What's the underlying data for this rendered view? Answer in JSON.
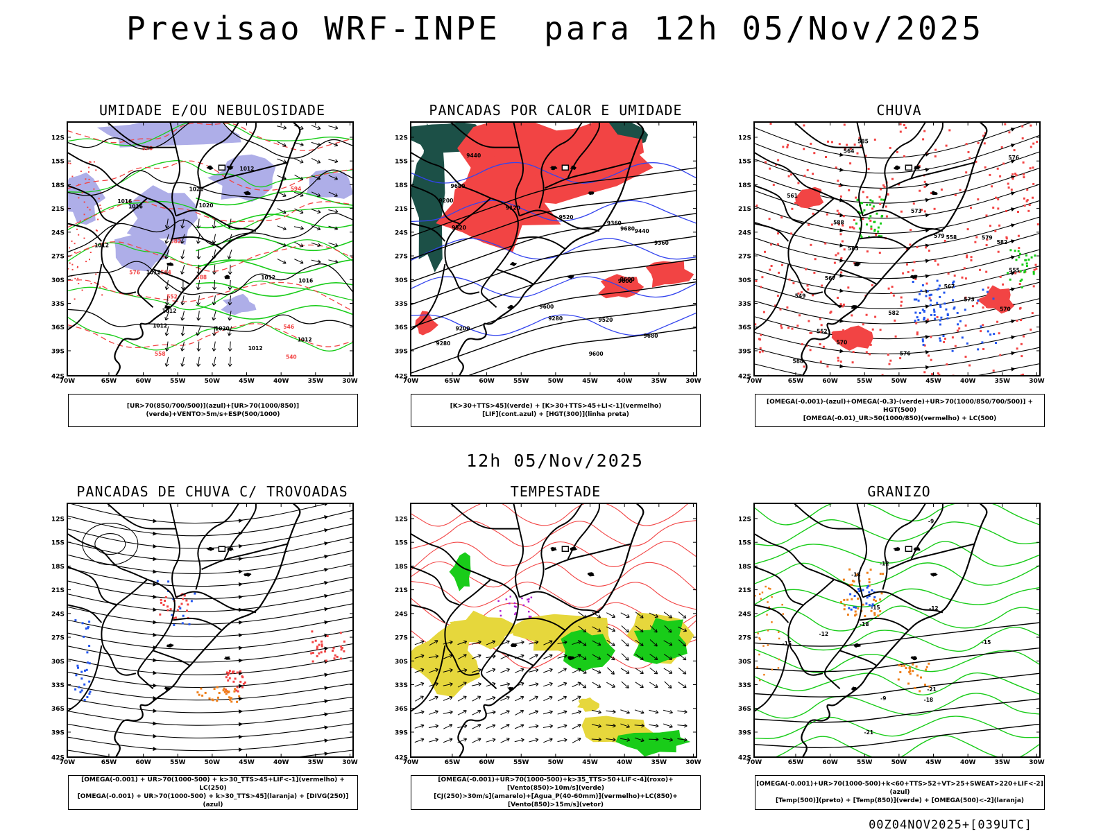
{
  "header": {
    "title": "Previsao WRF-INPE  para 12h 05/Nov/2025"
  },
  "middle_title": "12h 05/Nov/2025",
  "footer": "00Z04NOV2025+[039UTC]",
  "axes": {
    "lat_labels": [
      "12S",
      "15S",
      "18S",
      "21S",
      "24S",
      "27S",
      "30S",
      "33S",
      "36S",
      "39S",
      "42S"
    ],
    "lon_labels": [
      "70W",
      "65W",
      "60W",
      "55W",
      "50W",
      "45W",
      "40W",
      "35W",
      "30W"
    ]
  },
  "colors": {
    "blue_fill": "#aeaee8",
    "red": "#f24444",
    "green": "#19cc19",
    "dark_green": "#1c5047",
    "yellow": "#e6d73c",
    "orange": "#ef7f1a",
    "blue": "#2255ee",
    "purple": "#b020d0"
  },
  "panels": [
    {
      "title": "UMIDADE E/OU NEBULOSIDADE",
      "legend": [
        "[UR>70(850/700/500)](azul)+[UR>70(1000/850)](verde)+VENTO>5m/s+ESP(500/1000)"
      ],
      "contour_labels": [
        "1012",
        "1012",
        "1012",
        "1012",
        "1012",
        "1012",
        "1012",
        "1012",
        "1016",
        "1016",
        "1016",
        "1020",
        "1020",
        "1021",
        "540",
        "546",
        "552",
        "558",
        "564",
        "570",
        "576",
        "582",
        "588",
        "594"
      ]
    },
    {
      "title": "PANCADAS POR CALOR E UMIDADE",
      "legend": [
        "[K>30+TTS>45](verde) + [K>30+TTS>45+LI<-1](vermelho)",
        "[LIF](cont.azul) + [HGT(300)](linha preta)"
      ],
      "contour_labels": [
        "9680",
        "9680",
        "9680",
        "9600",
        "9600",
        "9600",
        "9600",
        "9520",
        "9520",
        "9520",
        "9440",
        "9440",
        "9360",
        "9360",
        "9280",
        "9280",
        "9200",
        "9200",
        "9120"
      ]
    },
    {
      "title": "CHUVA",
      "legend": [
        "[OMEGA(-0.001)-(azul)+OMEGA(-0.3)-(verde)+UR>70(1000/850/700/500)] + HGT(500)",
        "[OMEGA(-0.01)_UR>50(1000/850)(vermelho) + LC(500)"
      ],
      "contour_labels": [
        "588",
        "588",
        "585",
        "585",
        "582",
        "582",
        "579",
        "579",
        "576",
        "576",
        "573",
        "573",
        "570",
        "570",
        "567",
        "567",
        "564",
        "561",
        "558",
        "555",
        "552",
        "549"
      ]
    },
    {
      "title": "PANCADAS DE CHUVA C/ TROVOADAS",
      "legend": [
        "[OMEGA(-0.001) + UR>70(1000-500) + k>30_TTS>45+LIF<-1](vermelho) + LC(250)",
        "[OMEGA(-0.001) + UR>70(1000-500) + k>30_TTS>45](laranja) + [DIVG(250)](azul)"
      ],
      "contour_labels": []
    },
    {
      "title": "TEMPESTADE",
      "legend": [
        "[OMEGA(-0.001)+UR>70(1000-500)+k>35_TTS>50+LIF<-4](roxo)+[Vento(850)>10m/s](verde)",
        "[CJ(250)>30m/s](amarelo)+[Agua_P(40-60mm)](vermelho)+LC(850)+[Vento(850)>15m/s](vetor)"
      ],
      "contour_labels": []
    },
    {
      "title": "GRANIZO",
      "legend": [
        "[OMEGA(-0.001)+UR>70(1000-500)+k<60+TTS>52+VT>25+SWEAT>220+LIF<-2](azul)",
        "[Temp(500)](preto) + [Temp(850)](verde) + [OMEGA(500)<-2](laranja)"
      ],
      "contour_labels": [
        "-9",
        "-9",
        "-12",
        "-12",
        "-12",
        "-15",
        "-15",
        "-15",
        "-18",
        "-18",
        "-18",
        "-21",
        "-21"
      ]
    }
  ]
}
